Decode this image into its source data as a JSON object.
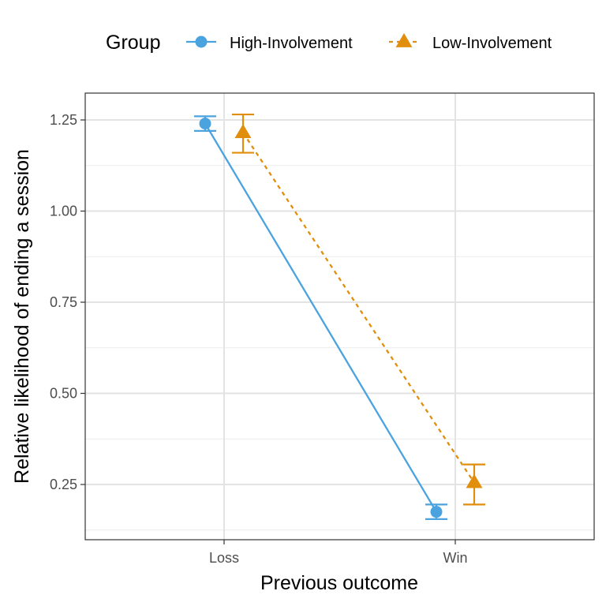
{
  "chart_data": {
    "type": "line",
    "title": "",
    "xlabel": "Previous outcome",
    "ylabel": "Relative likelihood of ending a session",
    "categories": [
      "Loss",
      "Win"
    ],
    "ylim": [
      0.1,
      1.3
    ],
    "yticks": [
      0.25,
      0.5,
      0.75,
      1.0,
      1.25
    ],
    "ytick_labels": [
      "0.25",
      "0.50",
      "0.75",
      "1.00",
      "1.25"
    ],
    "grid": true,
    "legend": {
      "title": "Group",
      "position": "top"
    },
    "series": [
      {
        "name": "High-Involvement",
        "color": "#4aa3df",
        "marker": "circle",
        "line_style": "solid",
        "values": [
          1.24,
          0.175
        ],
        "error_low": [
          1.22,
          0.155
        ],
        "error_high": [
          1.26,
          0.195
        ]
      },
      {
        "name": "Low-Involvement",
        "color": "#e08e0b",
        "marker": "triangle",
        "line_style": "dotted",
        "values": [
          1.215,
          0.255
        ],
        "error_low": [
          1.16,
          0.195
        ],
        "error_high": [
          1.265,
          0.305
        ]
      }
    ]
  }
}
